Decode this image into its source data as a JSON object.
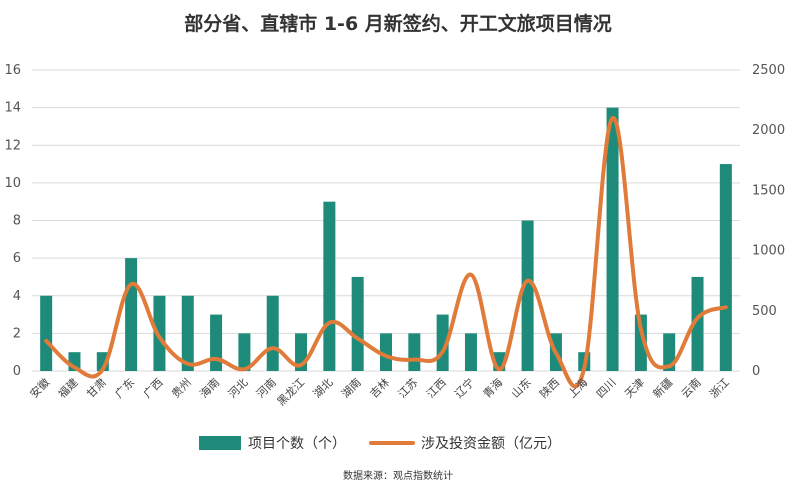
{
  "chart_data": {
    "type": "bar",
    "title": "部分省、直辖市 1-6 月新签约、开工文旅项目情况",
    "categories": [
      "安徽",
      "福建",
      "甘肃",
      "广东",
      "广西",
      "贵州",
      "海南",
      "河北",
      "河南",
      "黑龙江",
      "湖北",
      "湖南",
      "吉林",
      "江苏",
      "江西",
      "辽宁",
      "青海",
      "山东",
      "陕西",
      "上海",
      "四川",
      "天津",
      "新疆",
      "云南",
      "浙江"
    ],
    "series": [
      {
        "name": "项目个数（个）",
        "type": "bar",
        "axis": "left",
        "color": "#1e8a7a",
        "values": [
          4,
          1,
          1,
          6,
          4,
          4,
          3,
          2,
          4,
          2,
          9,
          5,
          2,
          2,
          3,
          2,
          1,
          8,
          2,
          1,
          14,
          3,
          2,
          5,
          11
        ]
      },
      {
        "name": "涉及投资金额（亿元）",
        "type": "line",
        "axis": "right",
        "color": "#e07b39",
        "values": [
          250,
          30,
          15,
          720,
          280,
          60,
          100,
          15,
          190,
          50,
          400,
          270,
          125,
          95,
          160,
          800,
          15,
          750,
          150,
          25,
          2100,
          350,
          40,
          440,
          530
        ]
      }
    ],
    "y_left": {
      "min": 0,
      "max": 16,
      "step": 2,
      "ticks": [
        "0",
        "2",
        "4",
        "6",
        "8",
        "10",
        "12",
        "14",
        "16"
      ]
    },
    "y_right": {
      "min": 0,
      "max": 2500,
      "step": 500,
      "ticks": [
        "0",
        "500",
        "1000",
        "1500",
        "2000",
        "2500"
      ]
    },
    "grid": true,
    "legend_position": "bottom",
    "source": "数据来源：观点指数统计"
  }
}
